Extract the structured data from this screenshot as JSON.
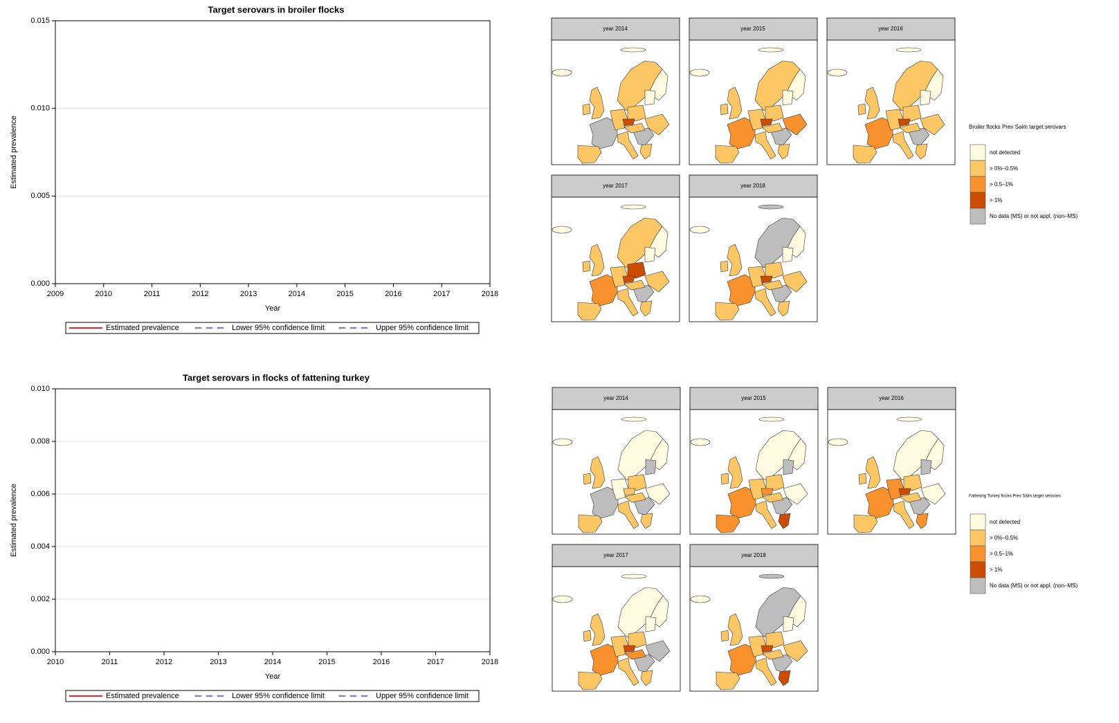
{
  "chart_data": [
    {
      "type": "line",
      "title": "Target serovars in  broiler flocks",
      "xlabel": "Year",
      "ylabel": "Estimated prevalence",
      "x": [
        2009,
        2010,
        2011,
        2012,
        2013,
        2014,
        2015,
        2016,
        2017,
        2018
      ],
      "xlim": [
        2009,
        2018
      ],
      "xticks": [
        2009,
        2010,
        2011,
        2012,
        2013,
        2014,
        2015,
        2016,
        2017,
        2018
      ],
      "ylim": [
        0,
        0.015
      ],
      "yticks": [
        {
          "value": 0,
          "label": "0.000"
        },
        {
          "value": 0.005,
          "label": "0.005"
        },
        {
          "value": 0.01,
          "label": "0.010"
        },
        {
          "value": 0.015,
          "label": "0.015"
        }
      ],
      "grid": true,
      "series": [
        {
          "name": "Estimated prevalence",
          "color": "#ff2020",
          "style": "solid",
          "values": [
            0.0038,
            0.0024,
            0.0019,
            0.00175,
            0.0017,
            0.0016,
            0.00145,
            0.0013,
            0.0012,
            0.00125
          ]
        },
        {
          "name": "Lower 95% confidence limit",
          "color": "#7070ff",
          "style": "dashed",
          "values": [
            0.0018,
            0.0013,
            0.0011,
            0.001,
            0.0009,
            0.0009,
            0.0008,
            0.0007,
            0.0006,
            0.00065
          ]
        },
        {
          "name": "Upper 95% confidence limit",
          "color": "#7070ff",
          "style": "dashed",
          "values": [
            0.0083,
            0.0043,
            0.0035,
            0.0032,
            0.0031,
            0.0029,
            0.0027,
            0.0025,
            0.0023,
            0.0024
          ]
        }
      ]
    },
    {
      "type": "line",
      "title": "Target serovars in flocks of  fattening turkey",
      "xlabel": "Year",
      "ylabel": "Estimated prevalence",
      "x": [
        2010,
        2010.5,
        2011,
        2011.5,
        2012,
        2012.5,
        2013,
        2013.5,
        2014,
        2014.5,
        2015,
        2015.5,
        2016,
        2016.5,
        2017,
        2017.5,
        2018
      ],
      "xlim": [
        2010,
        2018
      ],
      "xticks": [
        2010,
        2011,
        2012,
        2013,
        2014,
        2015,
        2016,
        2017,
        2018
      ],
      "ylim": [
        0,
        0.01
      ],
      "yticks": [
        {
          "value": 0,
          "label": "0.000"
        },
        {
          "value": 0.002,
          "label": "0.002"
        },
        {
          "value": 0.004,
          "label": "0.004"
        },
        {
          "value": 0.006,
          "label": "0.006"
        },
        {
          "value": 0.008,
          "label": "0.008"
        },
        {
          "value": 0.01,
          "label": "0.010"
        }
      ],
      "grid": true,
      "series": [
        {
          "name": "Estimated prevalence",
          "color": "#ff2020",
          "style": "solid",
          "values": [
            0.0041,
            0.0047,
            0.0044,
            0.0037,
            0.0031,
            0.0027,
            0.00245,
            0.0024,
            0.00245,
            0.0026,
            0.0027,
            0.0028,
            0.0028,
            0.0026,
            0.0025,
            0.0025,
            0.0027
          ]
        },
        {
          "name": "Lower 95% confidence limit",
          "color": "#7070ff",
          "style": "dashed",
          "values": [
            0.0026,
            0.0032,
            0.0031,
            0.0026,
            0.0021,
            0.0018,
            0.00165,
            0.00165,
            0.0017,
            0.0019,
            0.002,
            0.002,
            0.0019,
            0.0017,
            0.0016,
            0.0015,
            0.0018
          ]
        },
        {
          "name": "Upper 95% confidence limit",
          "color": "#7070ff",
          "style": "dashed",
          "values": [
            0.0063,
            0.0069,
            0.0065,
            0.0055,
            0.0044,
            0.0038,
            0.0035,
            0.0034,
            0.0034,
            0.0036,
            0.0039,
            0.0041,
            0.0042,
            0.0041,
            0.0039,
            0.004,
            0.0041
          ]
        }
      ]
    }
  ],
  "maps": [
    {
      "title": "Broiler flocks Prev Salm target serovars",
      "panels": [
        "year 2014",
        "year 2015",
        "year 2016",
        "year 2017",
        "year 2018"
      ],
      "legend": [
        {
          "label": "not detected",
          "color": "#fffbe1"
        },
        {
          "label": "> 0%–0.5%",
          "color": "#fdc766"
        },
        {
          "label": "> 0.5–1%",
          "color": "#f9922d"
        },
        {
          "label": "> 1%",
          "color": "#cc4c02"
        },
        {
          "label": "No data (MS) or not appl. (non–MS)",
          "color": "#bdbdbd"
        }
      ]
    },
    {
      "title": "Fattening Turkey flocks Prev Salm target serovars",
      "panels": [
        "year 2014",
        "year 2015",
        "year 2016",
        "year 2017",
        "year 2018"
      ],
      "legend": [
        {
          "label": "not detected",
          "color": "#fffbe1"
        },
        {
          "label": "> 0%–0.5%",
          "color": "#fdc766"
        },
        {
          "label": "> 0.5–1%",
          "color": "#f9922d"
        },
        {
          "label": "> 1%",
          "color": "#cc4c02"
        },
        {
          "label": "No data (MS) or not appl. (non–MS)",
          "color": "#bdbdbd"
        }
      ]
    }
  ]
}
